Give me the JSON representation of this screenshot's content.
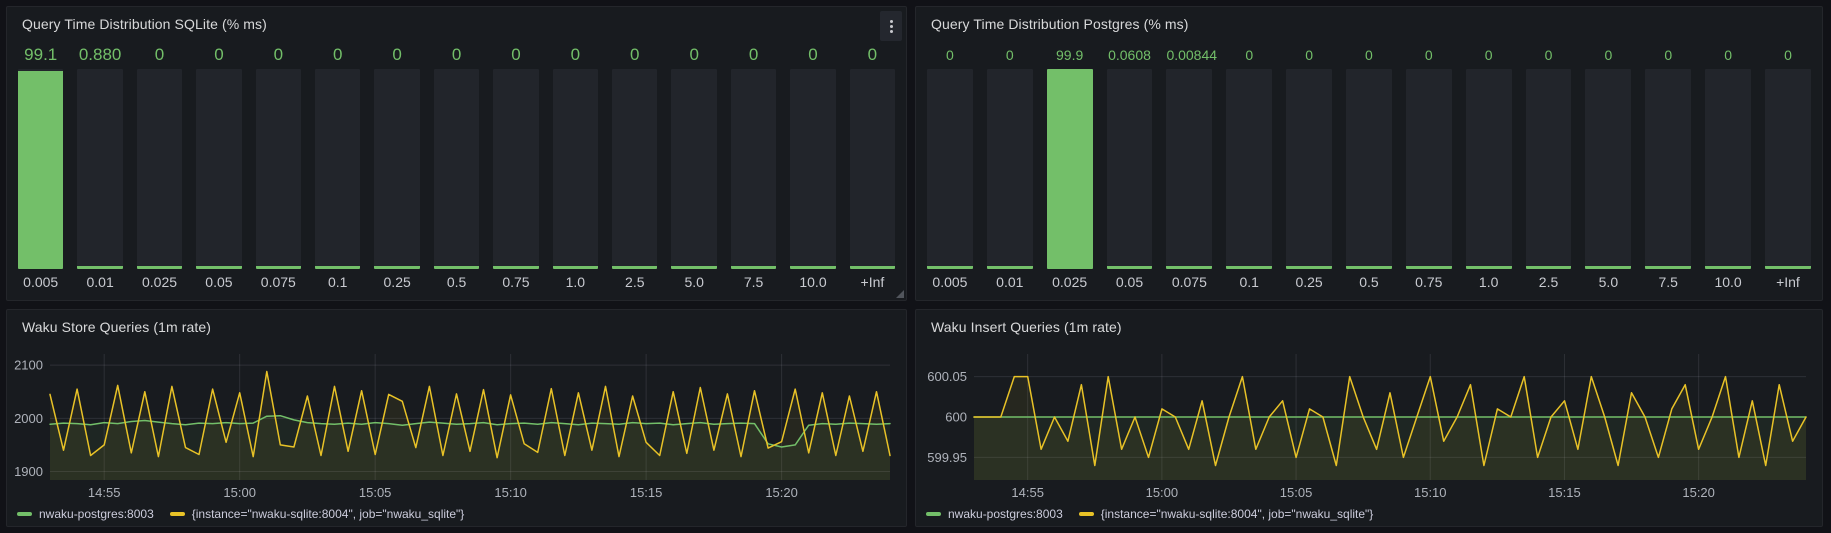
{
  "colors": {
    "green": "#73BF69",
    "yellow": "#E8C227",
    "panel_bg": "#181B1F",
    "page_bg": "#111217",
    "bar_bg": "#22252B",
    "axis_text": "#AEB2BA",
    "grid": "rgba(204,204,220,0.12)",
    "title_text": "#D8D9DA"
  },
  "icons": {
    "panel_menu": "kebab-menu",
    "panel_resize": "resize-corner"
  },
  "chart_data": [
    {
      "id": "sqlite",
      "type": "bar",
      "title": "Query Time Distribution SQLite (% ms)",
      "categories": [
        "0.005",
        "0.01",
        "0.025",
        "0.05",
        "0.075",
        "0.1",
        "0.25",
        "0.5",
        "0.75",
        "1.0",
        "2.5",
        "5.0",
        "7.5",
        "10.0",
        "+Inf"
      ],
      "display_values": [
        "99.1",
        "0.880",
        "0",
        "0",
        "0",
        "0",
        "0",
        "0",
        "0",
        "0",
        "0",
        "0",
        "0",
        "0",
        "0"
      ],
      "values": [
        99.1,
        0.88,
        0,
        0,
        0,
        0,
        0,
        0,
        0,
        0,
        0,
        0,
        0,
        0,
        0
      ],
      "ylim": [
        0,
        100
      ]
    },
    {
      "id": "postgres",
      "type": "bar",
      "title": "Query Time Distribution Postgres (% ms)",
      "categories": [
        "0.005",
        "0.01",
        "0.025",
        "0.05",
        "0.075",
        "0.1",
        "0.25",
        "0.5",
        "0.75",
        "1.0",
        "2.5",
        "5.0",
        "7.5",
        "10.0",
        "+Inf"
      ],
      "display_values": [
        "0",
        "0",
        "99.9",
        "0.0608",
        "0.00844",
        "0",
        "0",
        "0",
        "0",
        "0",
        "0",
        "0",
        "0",
        "0",
        "0"
      ],
      "values": [
        0,
        0,
        99.9,
        0.0608,
        0.00844,
        0,
        0,
        0,
        0,
        0,
        0,
        0,
        0,
        0,
        0
      ],
      "ylim": [
        0,
        100
      ]
    },
    {
      "id": "store",
      "type": "line",
      "title": "Waku Store Queries (1m rate)",
      "xlim_min": [
        893,
        924
      ],
      "x_ticks": [
        {
          "t": 895,
          "label": "14:55"
        },
        {
          "t": 900,
          "label": "15:00"
        },
        {
          "t": 905,
          "label": "15:05"
        },
        {
          "t": 910,
          "label": "15:10"
        },
        {
          "t": 915,
          "label": "15:15"
        },
        {
          "t": 920,
          "label": "15:20"
        }
      ],
      "ylim": [
        1884,
        2121
      ],
      "y_ticks": [
        {
          "v": 1900,
          "label": "1900"
        },
        {
          "v": 2000,
          "label": "2000"
        },
        {
          "v": 2100,
          "label": "2100"
        }
      ],
      "series": [
        {
          "name": "nwaku-postgres:8003",
          "color_key": "green",
          "start": 893,
          "step": 0.5,
          "values": [
            1989,
            1991,
            1990,
            1988,
            1992,
            1990,
            1994,
            1996,
            1993,
            1990,
            1988,
            1991,
            1990,
            1992,
            1990,
            1991,
            2004,
            2005,
            1997,
            1992,
            1990,
            1989,
            1991,
            1989,
            1992,
            1990,
            1987,
            1990,
            1993,
            1991,
            1989,
            1990,
            1992,
            1988,
            1990,
            1991,
            1989,
            1992,
            1990,
            1988,
            1991,
            1990,
            1989,
            1992,
            1990,
            1991,
            1988,
            1990,
            1992,
            1989,
            1990,
            1991,
            1990,
            1952,
            1946,
            1950,
            1987,
            1990,
            1989,
            1991,
            1990,
            1989,
            1990
          ]
        },
        {
          "name": "{instance=\"nwaku-sqlite:8004\", job=\"nwaku_sqlite\"}",
          "color_key": "yellow",
          "start": 893,
          "step": 0.5,
          "values": [
            2045,
            1940,
            2055,
            1930,
            1950,
            2062,
            1935,
            2050,
            1928,
            2060,
            1945,
            1932,
            2055,
            1955,
            2048,
            1928,
            2088,
            1950,
            1946,
            2042,
            1930,
            2060,
            1938,
            2052,
            1932,
            2045,
            2032,
            1945,
            2060,
            1930,
            2046,
            1938,
            2054,
            1926,
            2044,
            1952,
            1936,
            2056,
            1930,
            2048,
            1940,
            2060,
            1928,
            2042,
            1955,
            1930,
            2050,
            1934,
            2058,
            1940,
            2046,
            1928,
            2052,
            1944,
            1956,
            2055,
            1935,
            2048,
            1930,
            2042,
            1938,
            2050,
            1930
          ]
        }
      ]
    },
    {
      "id": "insert",
      "type": "line",
      "title": "Waku Insert Queries (1m rate)",
      "xlim_min": [
        893,
        924
      ],
      "x_ticks": [
        {
          "t": 895,
          "label": "14:55"
        },
        {
          "t": 900,
          "label": "15:00"
        },
        {
          "t": 905,
          "label": "15:05"
        },
        {
          "t": 910,
          "label": "15:10"
        },
        {
          "t": 915,
          "label": "15:15"
        },
        {
          "t": 920,
          "label": "15:20"
        }
      ],
      "ylim": [
        599.922,
        600.078
      ],
      "y_ticks": [
        {
          "v": 599.95,
          "label": "599.95"
        },
        {
          "v": 600,
          "label": "600"
        },
        {
          "v": 600.05,
          "label": "600.05"
        }
      ],
      "series": [
        {
          "name": "nwaku-postgres:8003",
          "color_key": "green",
          "start": 893,
          "step": 31,
          "values": [
            600,
            600
          ]
        },
        {
          "name": "{instance=\"nwaku-sqlite:8004\", job=\"nwaku_sqlite\"}",
          "color_key": "yellow",
          "start": 893,
          "step": 0.5,
          "values": [
            600,
            600,
            600,
            600.05,
            600.05,
            599.96,
            600,
            599.97,
            600.04,
            599.94,
            600.05,
            599.96,
            600,
            599.95,
            600.01,
            600,
            599.96,
            600.02,
            599.94,
            600,
            600.05,
            599.96,
            600,
            600.02,
            599.95,
            600.01,
            600,
            599.94,
            600.05,
            600,
            599.96,
            600.03,
            599.95,
            600,
            600.05,
            599.97,
            600,
            600.04,
            599.94,
            600.01,
            600,
            600.05,
            599.95,
            600,
            600.02,
            599.96,
            600.05,
            600,
            599.94,
            600.03,
            600,
            599.95,
            600.01,
            600.04,
            599.96,
            600,
            600.05,
            599.95,
            600.02,
            599.94,
            600.04,
            599.97,
            600
          ]
        }
      ]
    }
  ]
}
